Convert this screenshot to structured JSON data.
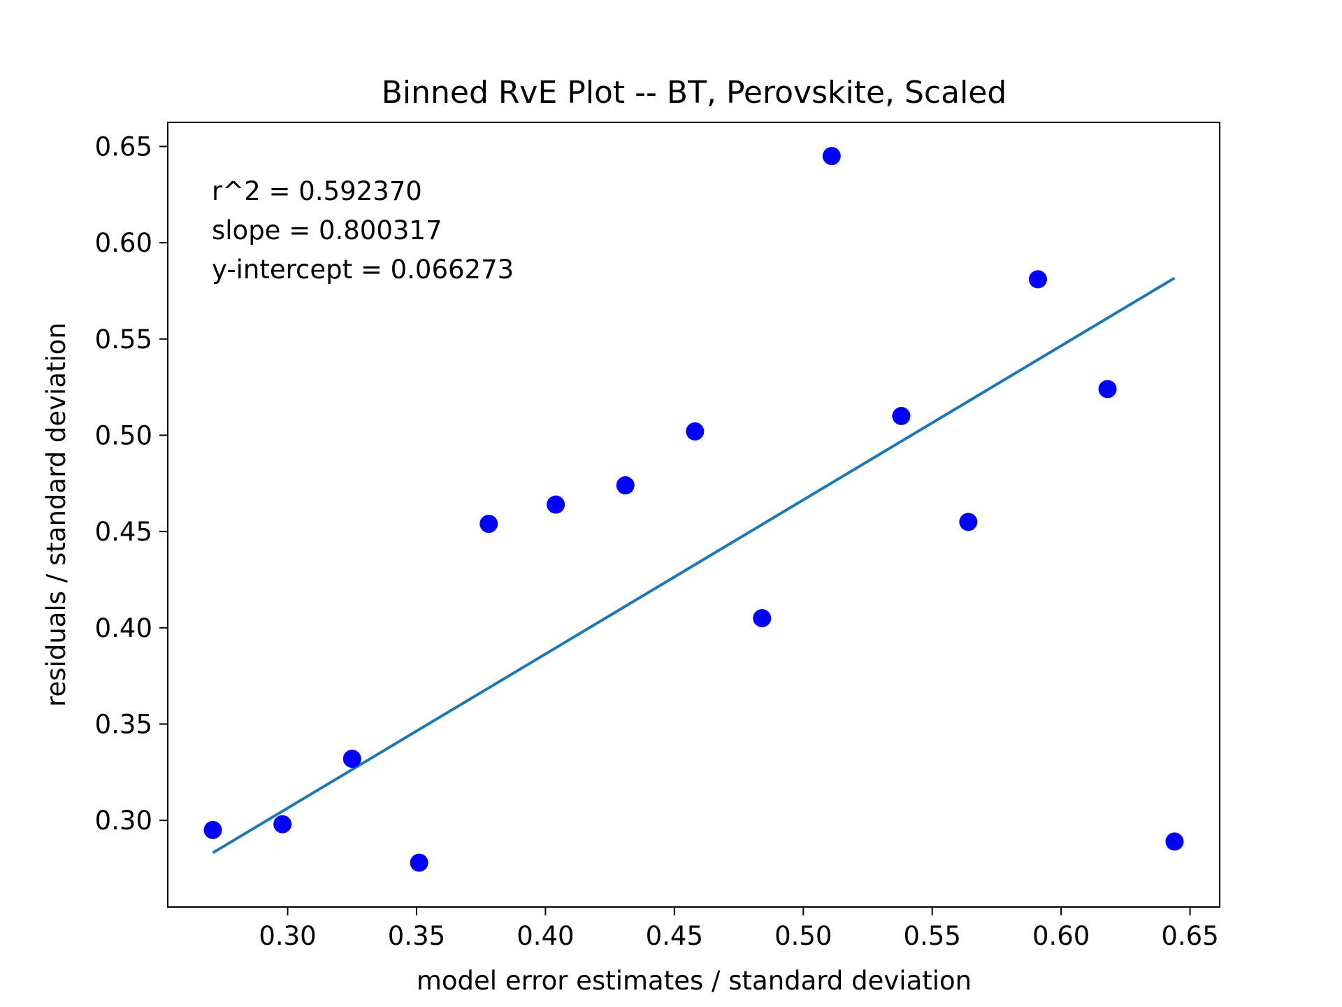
{
  "chart_data": {
    "type": "scatter",
    "title": "Binned RvE Plot -- BT, Perovskite, Scaled",
    "xlabel": "model error estimates / standard deviation",
    "ylabel": "residuals / standard deviation",
    "xlim": [
      0.2535,
      0.6615
    ],
    "ylim": [
      0.255,
      0.6625
    ],
    "xticks": [
      "0.30",
      "0.35",
      "0.40",
      "0.45",
      "0.50",
      "0.55",
      "0.60",
      "0.65"
    ],
    "yticks": [
      "0.30",
      "0.35",
      "0.40",
      "0.45",
      "0.50",
      "0.55",
      "0.60",
      "0.65"
    ],
    "grid": false,
    "point_color": "#0000ff",
    "line_color": "#1f77b4",
    "points": [
      {
        "x": 0.271,
        "y": 0.295
      },
      {
        "x": 0.298,
        "y": 0.298
      },
      {
        "x": 0.325,
        "y": 0.332
      },
      {
        "x": 0.351,
        "y": 0.278
      },
      {
        "x": 0.378,
        "y": 0.454
      },
      {
        "x": 0.404,
        "y": 0.464
      },
      {
        "x": 0.431,
        "y": 0.474
      },
      {
        "x": 0.458,
        "y": 0.502
      },
      {
        "x": 0.484,
        "y": 0.405
      },
      {
        "x": 0.511,
        "y": 0.645
      },
      {
        "x": 0.538,
        "y": 0.51
      },
      {
        "x": 0.564,
        "y": 0.455
      },
      {
        "x": 0.591,
        "y": 0.581
      },
      {
        "x": 0.618,
        "y": 0.524
      },
      {
        "x": 0.644,
        "y": 0.289
      }
    ],
    "fit_line": {
      "x": [
        0.271,
        0.644
      ],
      "slope": 0.800317,
      "intercept": 0.066273
    },
    "annotations": [
      "r^2 = 0.592370",
      "slope = 0.800317",
      "y-intercept = 0.066273"
    ]
  }
}
